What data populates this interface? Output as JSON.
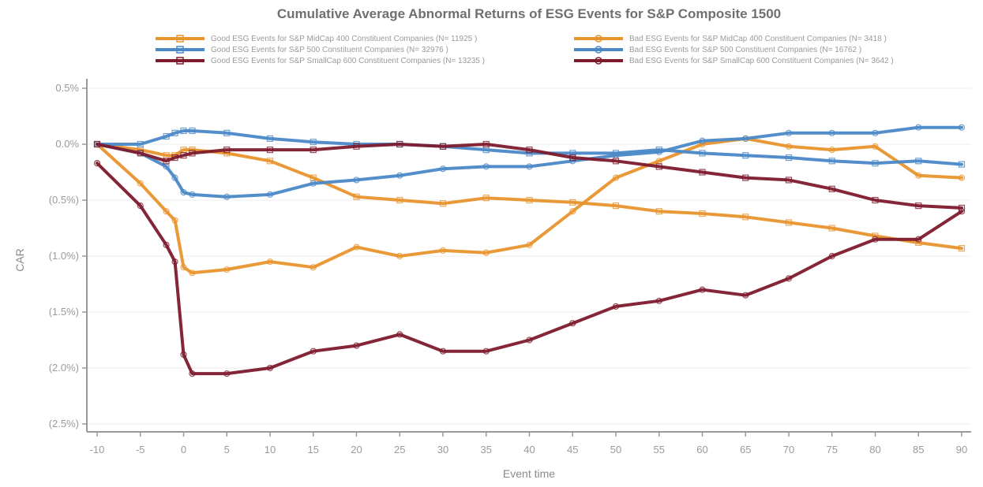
{
  "chart_data": {
    "type": "line",
    "title": "Cumulative Average Abnormal Returns of ESG Events for S&P Composite 1500",
    "xlabel": "Event time",
    "ylabel": "CAR",
    "xlim": [
      -10,
      90
    ],
    "ylim": [
      -2.5,
      0.5
    ],
    "x_ticks": [
      -10,
      -5,
      0,
      5,
      10,
      15,
      20,
      25,
      30,
      35,
      40,
      45,
      50,
      55,
      60,
      65,
      70,
      75,
      80,
      85,
      90
    ],
    "y_ticks": [
      0.5,
      0.0,
      -0.5,
      -1.0,
      -1.5,
      -2.0,
      -2.5
    ],
    "y_tick_labels": [
      "0.5%",
      "0.0%",
      "(0.5%)",
      "(1.0%)",
      "(1.5%)",
      "(2.0%)",
      "(2.5%)"
    ],
    "grid": "horizontal",
    "legend_position": "top",
    "x": [
      -10,
      -5,
      -2,
      -1,
      0,
      1,
      5,
      10,
      15,
      20,
      25,
      30,
      35,
      40,
      45,
      50,
      55,
      60,
      65,
      70,
      75,
      80,
      85,
      90
    ],
    "series": [
      {
        "name": "Good ESG Events for S&P MidCap 400 Constituent Companies (N= 11925 )",
        "color": "#e8942c",
        "marker": "square",
        "values": [
          0.0,
          -0.05,
          -0.1,
          -0.1,
          -0.05,
          -0.05,
          -0.08,
          -0.15,
          -0.3,
          -0.47,
          -0.5,
          -0.53,
          -0.48,
          -0.5,
          -0.52,
          -0.55,
          -0.6,
          -0.62,
          -0.65,
          -0.7,
          -0.75,
          -0.82,
          -0.88,
          -0.93
        ]
      },
      {
        "name": "Bad ESG Events for S&P MidCap 400 Constituent Companies (N= 3418 )",
        "color": "#e8942c",
        "marker": "circle",
        "values": [
          0.0,
          -0.35,
          -0.6,
          -0.68,
          -1.1,
          -1.15,
          -1.12,
          -1.05,
          -1.1,
          -0.92,
          -1.0,
          -0.95,
          -0.97,
          -0.9,
          -0.6,
          -0.3,
          -0.15,
          0.0,
          0.05,
          -0.02,
          -0.05,
          -0.02,
          -0.28,
          -0.3
        ]
      },
      {
        "name": "Good ESG Events for S&P 500 Constituent Companies (N= 32976 )",
        "color": "#4a88c8",
        "marker": "square",
        "values": [
          0.0,
          0.0,
          0.07,
          0.1,
          0.12,
          0.12,
          0.1,
          0.05,
          0.02,
          0.0,
          0.0,
          -0.02,
          -0.05,
          -0.08,
          -0.08,
          -0.08,
          -0.05,
          -0.08,
          -0.1,
          -0.12,
          -0.15,
          -0.17,
          -0.15,
          -0.18
        ]
      },
      {
        "name": "Bad ESG Events for S&P 500 Constituent Companies (N= 16762 )",
        "color": "#4a88c8",
        "marker": "circle",
        "values": [
          0.0,
          -0.08,
          -0.2,
          -0.3,
          -0.43,
          -0.45,
          -0.47,
          -0.45,
          -0.35,
          -0.32,
          -0.28,
          -0.22,
          -0.2,
          -0.2,
          -0.15,
          -0.1,
          -0.07,
          0.03,
          0.05,
          0.1,
          0.1,
          0.1,
          0.15,
          0.15
        ]
      },
      {
        "name": "Good ESG Events for S&P SmallCap 600 Constituent Companies (N= 13235 )",
        "color": "#7d1a2c",
        "marker": "square",
        "values": [
          0.0,
          -0.08,
          -0.15,
          -0.12,
          -0.1,
          -0.08,
          -0.05,
          -0.05,
          -0.05,
          -0.02,
          0.0,
          -0.02,
          0.0,
          -0.05,
          -0.12,
          -0.15,
          -0.2,
          -0.25,
          -0.3,
          -0.32,
          -0.4,
          -0.5,
          -0.55,
          -0.57
        ]
      },
      {
        "name": "Bad ESG Events for S&P SmallCap 600 Constituent Companies (N= 3642 )",
        "color": "#7d1a2c",
        "marker": "circle",
        "values": [
          -0.17,
          -0.55,
          -0.9,
          -1.05,
          -1.88,
          -2.05,
          -2.05,
          -2.0,
          -1.85,
          -1.8,
          -1.7,
          -1.85,
          -1.85,
          -1.75,
          -1.6,
          -1.45,
          -1.4,
          -1.3,
          -1.35,
          -1.2,
          -1.0,
          -0.85,
          -0.85,
          -0.6
        ]
      }
    ]
  }
}
